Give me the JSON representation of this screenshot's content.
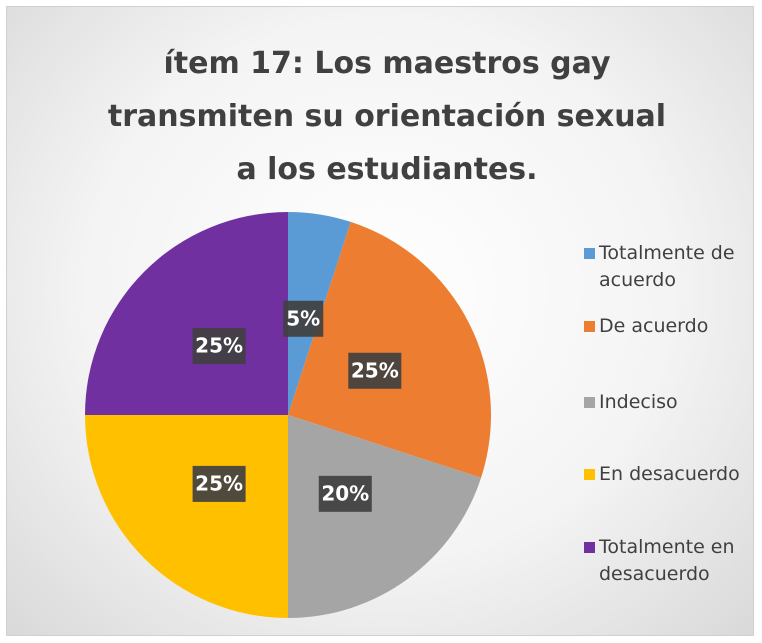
{
  "chart_data": {
    "type": "pie",
    "title": "ítem 17: Los maestros gay transmiten su orientación sexual a los estudiantes.",
    "categories": [
      "Totalmente de acuerdo",
      "De acuerdo",
      "Indeciso",
      "En desacuerdo",
      "Totalmente en desacuerdo"
    ],
    "values": [
      5,
      25,
      20,
      25,
      25
    ],
    "value_labels": [
      "5%",
      "25%",
      "20%",
      "25%",
      "25%"
    ],
    "colors": [
      "#5B9BD5",
      "#ED7D31",
      "#A5A5A5",
      "#FFC000",
      "#7030A0"
    ],
    "legend": "right"
  }
}
